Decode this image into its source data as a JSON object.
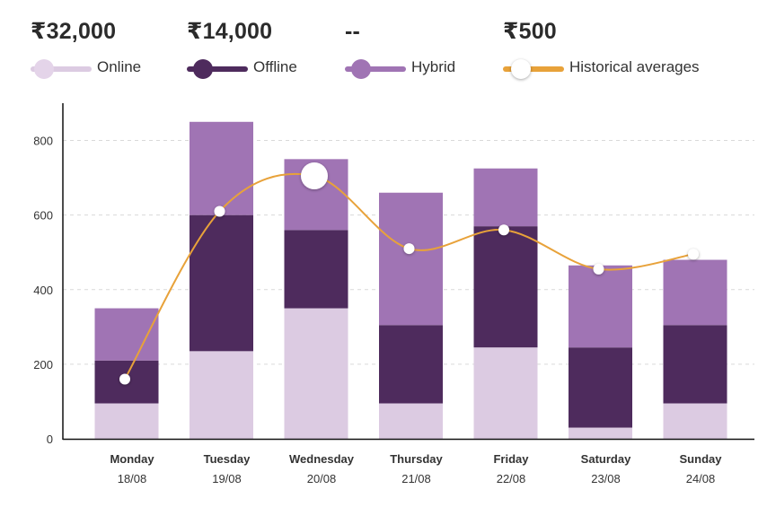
{
  "stats": [
    {
      "amount": "₹32,000",
      "legend": "Online",
      "color": "#dccbe2",
      "dot_color": "#e4d4e9"
    },
    {
      "amount": "₹14,000",
      "legend": "Offline",
      "color": "#4e2b5d",
      "dot_color": "#4e2b5d"
    },
    {
      "amount": "--",
      "legend": "Hybrid",
      "color": "#a074b4",
      "dot_color": "#a074b4"
    },
    {
      "amount": "₹500",
      "legend": "Historical averages",
      "color": "#e8a23a",
      "dot_color": "#ffffff"
    }
  ],
  "chart_data": {
    "type": "bar",
    "stacked": true,
    "categories": [
      "Monday",
      "Tuesday",
      "Wednesday",
      "Thursday",
      "Friday",
      "Saturday",
      "Sunday"
    ],
    "dates": [
      "18/08",
      "19/08",
      "20/08",
      "21/08",
      "22/08",
      "23/08",
      "24/08"
    ],
    "series": [
      {
        "name": "Online",
        "values": [
          95,
          235,
          350,
          95,
          245,
          30,
          95
        ],
        "color": "#dccbe2"
      },
      {
        "name": "Offline",
        "values": [
          115,
          365,
          210,
          210,
          325,
          215,
          210
        ],
        "color": "#4e2b5d"
      },
      {
        "name": "Hybrid",
        "values": [
          140,
          250,
          190,
          355,
          155,
          220,
          175
        ],
        "color": "#a074b4"
      }
    ],
    "line": {
      "name": "Historical averages",
      "values": [
        160,
        610,
        705,
        510,
        560,
        455,
        495
      ],
      "color": "#e8a23a",
      "highlight_index": 2
    },
    "yticks": [
      0,
      200,
      400,
      600,
      800
    ],
    "ylim": [
      0,
      900
    ],
    "grid": true
  }
}
